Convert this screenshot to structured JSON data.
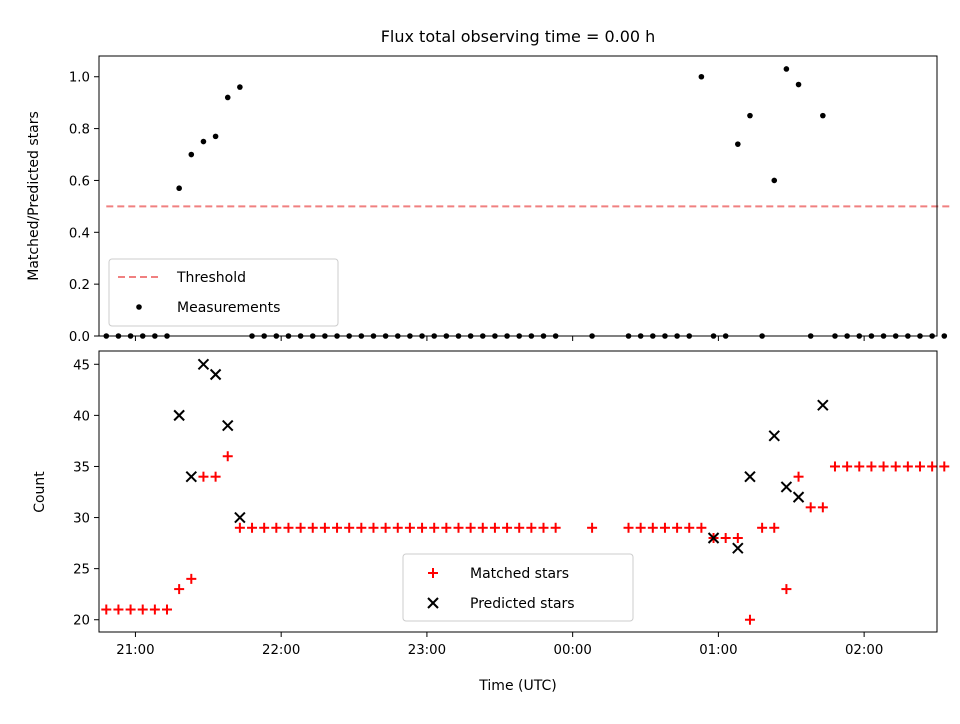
{
  "title": "Flux total observing time = 0.00 h",
  "colors": {
    "threshold": "#f08080",
    "measurement": "#000000",
    "matched": "#ff0000",
    "predicted": "#000000"
  },
  "chart_data": [
    {
      "type": "scatter",
      "ylabel": "Matched/Predicted stars",
      "ylim": [
        0,
        1.08
      ],
      "xlim": [
        "20:45",
        "02:30"
      ],
      "yticks": [
        "0.0",
        "0.2",
        "0.4",
        "0.6",
        "0.8",
        "1.0"
      ],
      "legend": {
        "placement": "lower-left",
        "entries": [
          "Threshold",
          "Measurements"
        ]
      },
      "threshold": {
        "name": "Threshold",
        "y": 0.5,
        "x": [
          "20:48",
          "02:36"
        ]
      },
      "measurements": {
        "name": "Measurements",
        "x": [
          "20:48",
          "20:53",
          "20:58",
          "21:03",
          "21:08",
          "21:13",
          "21:18",
          "21:23",
          "21:28",
          "21:33",
          "21:38",
          "21:43",
          "21:48",
          "21:53",
          "21:58",
          "22:03",
          "22:08",
          "22:13",
          "22:18",
          "22:23",
          "22:28",
          "22:33",
          "22:38",
          "22:43",
          "22:48",
          "22:53",
          "22:58",
          "23:03",
          "23:08",
          "23:13",
          "23:18",
          "23:23",
          "23:28",
          "23:33",
          "23:38",
          "23:43",
          "23:48",
          "23:53",
          "00:08",
          "00:23",
          "00:28",
          "00:33",
          "00:38",
          "00:43",
          "00:48",
          "00:53",
          "00:58",
          "01:03",
          "01:08",
          "01:13",
          "01:18",
          "01:23",
          "01:28",
          "01:33",
          "01:38",
          "01:43",
          "01:48",
          "01:53",
          "01:58",
          "02:03",
          "02:08",
          "02:13",
          "02:18",
          "02:23",
          "02:28",
          "02:33"
        ],
        "y": [
          0,
          0,
          0,
          0,
          0,
          0,
          0.57,
          0.7,
          0.75,
          0.77,
          0.92,
          0.96,
          0,
          0,
          0,
          0,
          0,
          0,
          0,
          0,
          0,
          0,
          0,
          0,
          0,
          0,
          0,
          0,
          0,
          0,
          0,
          0,
          0,
          0,
          0,
          0,
          0,
          0,
          0,
          0,
          0,
          0,
          0,
          0,
          0,
          1.0,
          0,
          0,
          0.74,
          0.85,
          0,
          0.6,
          1.03,
          0.97,
          0,
          0.85,
          0,
          0,
          0,
          0,
          0,
          0,
          0,
          0,
          0,
          0
        ]
      }
    },
    {
      "type": "scatter",
      "ylabel": "Count",
      "xlabel": "Time (UTC)",
      "ylim": [
        18.8,
        46.3
      ],
      "xlim": [
        "20:45",
        "02:30"
      ],
      "yticks": [
        "20",
        "25",
        "30",
        "35",
        "40",
        "45"
      ],
      "xticks": [
        "21:00",
        "22:00",
        "23:00",
        "00:00",
        "01:00",
        "02:00"
      ],
      "legend": {
        "placement": "lower-center",
        "entries": [
          "Matched stars",
          "Predicted stars"
        ]
      },
      "series": [
        {
          "name": "Matched stars",
          "x": [
            "20:48",
            "20:53",
            "20:58",
            "21:03",
            "21:08",
            "21:13",
            "21:18",
            "21:23",
            "21:28",
            "21:33",
            "21:38",
            "21:43",
            "21:48",
            "21:53",
            "21:58",
            "22:03",
            "22:08",
            "22:13",
            "22:18",
            "22:23",
            "22:28",
            "22:33",
            "22:38",
            "22:43",
            "22:48",
            "22:53",
            "22:58",
            "23:03",
            "23:08",
            "23:13",
            "23:18",
            "23:23",
            "23:28",
            "23:33",
            "23:38",
            "23:43",
            "23:48",
            "23:53",
            "00:08",
            "00:23",
            "00:28",
            "00:33",
            "00:38",
            "00:43",
            "00:48",
            "00:53",
            "00:58",
            "01:03",
            "01:08",
            "01:13",
            "01:18",
            "01:23",
            "01:28",
            "01:33",
            "01:38",
            "01:43",
            "01:48",
            "01:53",
            "01:58",
            "02:03",
            "02:08",
            "02:13",
            "02:18",
            "02:23",
            "02:28",
            "02:33"
          ],
          "y": [
            21,
            21,
            21,
            21,
            21,
            21,
            23,
            24,
            34,
            34,
            36,
            29,
            29,
            29,
            29,
            29,
            29,
            29,
            29,
            29,
            29,
            29,
            29,
            29,
            29,
            29,
            29,
            29,
            29,
            29,
            29,
            29,
            29,
            29,
            29,
            29,
            29,
            29,
            29,
            29,
            29,
            29,
            29,
            29,
            29,
            29,
            28,
            28,
            28,
            20,
            29,
            29,
            23,
            34,
            31,
            31,
            35,
            35,
            35,
            35,
            35,
            35,
            35,
            35,
            35,
            35
          ]
        },
        {
          "name": "Predicted stars",
          "x": [
            "21:18",
            "21:23",
            "21:28",
            "21:33",
            "21:38",
            "21:43",
            "00:58",
            "01:08",
            "01:13",
            "01:23",
            "01:28",
            "01:33",
            "01:43"
          ],
          "y": [
            40,
            34,
            45,
            44,
            39,
            30,
            28,
            27,
            34,
            38,
            33,
            32,
            41
          ]
        }
      ]
    }
  ]
}
